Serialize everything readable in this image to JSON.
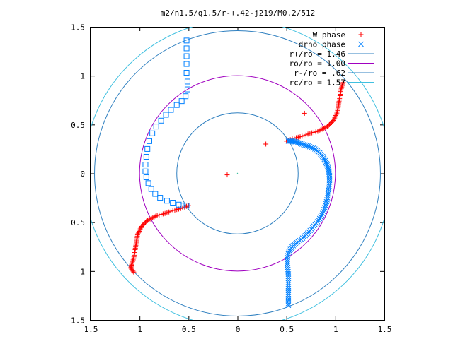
{
  "chart_data": {
    "type": "scatter",
    "title": "m2/n1.5/q1.5/r-+.42-j219/M0.2/512",
    "xlim": [
      -1.5,
      1.5
    ],
    "ylim": [
      -1.5,
      1.5
    ],
    "x_tick_values": [
      -1.5,
      -1,
      -0.5,
      0,
      0.5,
      1,
      1.5
    ],
    "x_tick_labels": [
      "1.5",
      "1",
      "0.5",
      "0",
      "0.5",
      "1",
      "1.5"
    ],
    "y_tick_values": [
      -1.5,
      -1,
      -0.5,
      0,
      0.5,
      1,
      1.5
    ],
    "y_tick_labels": [
      "1.5",
      "1",
      "0.5",
      "0",
      "0.5",
      "1",
      "1.5"
    ],
    "grid": false,
    "legend_position": "top-right",
    "series": [
      {
        "name": "W phase",
        "marker": "plus",
        "color": "#ff0000",
        "points": [
          [
            0.5,
            0.33
          ],
          [
            0.58,
            0.36
          ],
          [
            0.66,
            0.38
          ],
          [
            0.74,
            0.41
          ],
          [
            0.82,
            0.43
          ],
          [
            0.88,
            0.46
          ],
          [
            0.93,
            0.49
          ],
          [
            0.97,
            0.53
          ],
          [
            1.0,
            0.58
          ],
          [
            1.02,
            0.63
          ],
          [
            1.03,
            0.69
          ],
          [
            1.04,
            0.75
          ],
          [
            1.05,
            0.81
          ],
          [
            1.06,
            0.87
          ],
          [
            1.08,
            0.93
          ],
          [
            -0.5,
            -0.33
          ],
          [
            -0.58,
            -0.36
          ],
          [
            -0.66,
            -0.38
          ],
          [
            -0.74,
            -0.41
          ],
          [
            -0.82,
            -0.43
          ],
          [
            -0.88,
            -0.46
          ],
          [
            -0.93,
            -0.49
          ],
          [
            -0.97,
            -0.53
          ],
          [
            -1.0,
            -0.58
          ],
          [
            -1.02,
            -0.63
          ],
          [
            -1.03,
            -0.69
          ],
          [
            -1.04,
            -0.75
          ],
          [
            -1.05,
            -0.81
          ],
          [
            -1.06,
            -0.87
          ],
          [
            -1.08,
            -0.93
          ],
          [
            -1.09,
            -0.97
          ],
          [
            -1.06,
            -1.01
          ]
        ]
      },
      {
        "name": "drho phase",
        "marker": "cross",
        "color": "#0080ff",
        "points": [
          [
            0.52,
            0.33
          ],
          [
            0.56,
            0.33
          ],
          [
            0.6,
            0.32
          ],
          [
            0.66,
            0.3
          ],
          [
            0.72,
            0.28
          ],
          [
            0.79,
            0.25
          ],
          [
            0.84,
            0.21
          ],
          [
            0.88,
            0.16
          ],
          [
            0.91,
            0.1
          ],
          [
            0.93,
            0.04
          ],
          [
            0.94,
            -0.02
          ],
          [
            0.94,
            -0.09
          ],
          [
            0.93,
            -0.17
          ],
          [
            0.92,
            -0.25
          ],
          [
            0.9,
            -0.33
          ],
          [
            0.87,
            -0.41
          ],
          [
            0.83,
            -0.48
          ],
          [
            0.78,
            -0.54
          ],
          [
            0.73,
            -0.6
          ],
          [
            0.68,
            -0.65
          ],
          [
            0.62,
            -0.7
          ],
          [
            0.57,
            -0.74
          ],
          [
            0.53,
            -0.79
          ],
          [
            0.51,
            -0.86
          ],
          [
            0.51,
            -0.94
          ],
          [
            0.52,
            -1.03
          ],
          [
            0.52,
            -1.12
          ],
          [
            0.52,
            -1.2
          ],
          [
            0.52,
            -1.28
          ],
          [
            0.52,
            -1.35
          ]
        ]
      },
      {
        "name": "drho phase (open square)",
        "marker": "square",
        "color": "#0080ff",
        "points": [
          [
            -0.52,
            -0.33
          ],
          [
            -0.56,
            -0.33
          ],
          [
            -0.6,
            -0.32
          ],
          [
            -0.66,
            -0.3
          ],
          [
            -0.72,
            -0.28
          ],
          [
            -0.79,
            -0.25
          ],
          [
            -0.84,
            -0.21
          ],
          [
            -0.88,
            -0.16
          ],
          [
            -0.91,
            -0.1
          ],
          [
            -0.93,
            -0.04
          ],
          [
            -0.94,
            0.02
          ],
          [
            -0.94,
            0.09
          ],
          [
            -0.93,
            0.17
          ],
          [
            -0.92,
            0.25
          ],
          [
            -0.9,
            0.33
          ],
          [
            -0.87,
            0.41
          ],
          [
            -0.83,
            0.48
          ],
          [
            -0.78,
            0.54
          ],
          [
            -0.73,
            0.6
          ],
          [
            -0.68,
            0.65
          ],
          [
            -0.62,
            0.7
          ],
          [
            -0.57,
            0.74
          ],
          [
            -0.53,
            0.79
          ],
          [
            -0.51,
            0.86
          ],
          [
            -0.51,
            0.94
          ],
          [
            -0.52,
            1.03
          ],
          [
            -0.52,
            1.12
          ],
          [
            -0.52,
            1.2
          ],
          [
            -0.52,
            1.28
          ],
          [
            -0.52,
            1.36
          ]
        ]
      }
    ],
    "circles": [
      {
        "name": "r+/ro = 1.46",
        "radius": 1.46,
        "color": "#3080c0"
      },
      {
        "name": "ro/ro = 1.00",
        "radius": 1.0,
        "color": "#a000c0"
      },
      {
        "name": "r-/ro = .62",
        "radius": 0.62,
        "color": "#3080c0"
      },
      {
        "name": "rc/ro = 1.57",
        "radius": 1.57,
        "color": "#40c0e0"
      }
    ],
    "legend": [
      {
        "label": "W phase",
        "marker": "plus",
        "color": "#ff0000"
      },
      {
        "label": "drho phase",
        "marker": "cross",
        "color": "#0080ff"
      },
      {
        "label": "r+/ro = 1.46",
        "marker": "line",
        "color": "#3080c0"
      },
      {
        "label": "ro/ro = 1.00",
        "marker": "line",
        "color": "#a000c0"
      },
      {
        "label": "r-/ro = .62",
        "marker": "line",
        "color": "#3080c0"
      },
      {
        "label": "rc/ro = 1.57",
        "marker": "line",
        "color": "#40c0e0"
      }
    ]
  }
}
